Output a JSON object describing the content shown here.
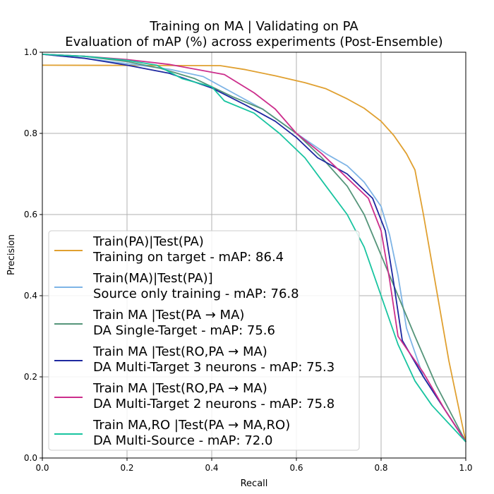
{
  "chart_data": {
    "type": "line",
    "title": "Training on MA | Validating on PA",
    "subtitle": "Evaluation of mAP (%) across experiments (Post-Ensemble)",
    "xlabel": "Recall",
    "ylabel": "Precision",
    "xlim": [
      0,
      1
    ],
    "ylim": [
      0,
      1
    ],
    "xticks": [
      "0.0",
      "0.2",
      "0.4",
      "0.6",
      "0.8",
      "1.0"
    ],
    "yticks": [
      "0.0",
      "0.2",
      "0.4",
      "0.6",
      "0.8",
      "1.0"
    ],
    "grid": true,
    "legend_position": "lower-left",
    "series": [
      {
        "name": "Train(PA)|Test(PA)",
        "description": "Training on target - mAP: 86.4",
        "color": "#e0a030",
        "points": [
          [
            0,
            0.968
          ],
          [
            0.42,
            0.967
          ],
          [
            0.48,
            0.957
          ],
          [
            0.55,
            0.942
          ],
          [
            0.62,
            0.925
          ],
          [
            0.67,
            0.91
          ],
          [
            0.72,
            0.885
          ],
          [
            0.76,
            0.862
          ],
          [
            0.8,
            0.83
          ],
          [
            0.83,
            0.795
          ],
          [
            0.86,
            0.75
          ],
          [
            0.88,
            0.71
          ],
          [
            0.9,
            0.6
          ],
          [
            0.93,
            0.42
          ],
          [
            0.96,
            0.24
          ],
          [
            1.0,
            0.04
          ]
        ]
      },
      {
        "name": "Train(MA)|Test(PA)]",
        "description": "Source only training - mAP: 76.8",
        "color": "#7eb4e6",
        "points": [
          [
            0,
            0.995
          ],
          [
            0.1,
            0.985
          ],
          [
            0.2,
            0.972
          ],
          [
            0.3,
            0.958
          ],
          [
            0.38,
            0.94
          ],
          [
            0.45,
            0.9
          ],
          [
            0.52,
            0.86
          ],
          [
            0.6,
            0.8
          ],
          [
            0.67,
            0.75
          ],
          [
            0.72,
            0.72
          ],
          [
            0.76,
            0.68
          ],
          [
            0.8,
            0.62
          ],
          [
            0.82,
            0.55
          ],
          [
            0.84,
            0.45
          ],
          [
            0.86,
            0.32
          ],
          [
            0.9,
            0.2
          ],
          [
            0.95,
            0.12
          ],
          [
            1.0,
            0.04
          ]
        ]
      },
      {
        "name": "Train MA |Test(PA → MA)",
        "description": "DA Single-Target - mAP: 75.6",
        "color": "#55957a",
        "points": [
          [
            0,
            0.995
          ],
          [
            0.1,
            0.99
          ],
          [
            0.2,
            0.977
          ],
          [
            0.28,
            0.96
          ],
          [
            0.36,
            0.935
          ],
          [
            0.45,
            0.89
          ],
          [
            0.52,
            0.86
          ],
          [
            0.6,
            0.8
          ],
          [
            0.66,
            0.74
          ],
          [
            0.72,
            0.67
          ],
          [
            0.76,
            0.6
          ],
          [
            0.8,
            0.5
          ],
          [
            0.84,
            0.4
          ],
          [
            0.88,
            0.3
          ],
          [
            0.93,
            0.18
          ],
          [
            1.0,
            0.04
          ]
        ]
      },
      {
        "name": "Train MA |Test(RO,PA → MA)",
        "description": "DA Multi-Target 3 neurons - mAP: 75.3",
        "color": "#1e28a0",
        "points": [
          [
            0,
            0.995
          ],
          [
            0.1,
            0.985
          ],
          [
            0.2,
            0.968
          ],
          [
            0.3,
            0.948
          ],
          [
            0.4,
            0.912
          ],
          [
            0.48,
            0.87
          ],
          [
            0.55,
            0.83
          ],
          [
            0.6,
            0.79
          ],
          [
            0.65,
            0.74
          ],
          [
            0.72,
            0.7
          ],
          [
            0.78,
            0.64
          ],
          [
            0.81,
            0.56
          ],
          [
            0.83,
            0.43
          ],
          [
            0.85,
            0.29
          ],
          [
            0.9,
            0.2
          ],
          [
            0.95,
            0.12
          ],
          [
            1.0,
            0.04
          ]
        ]
      },
      {
        "name": "Train MA |Test(RO,PA → MA)",
        "description": "DA Multi-Target 2 neurons - mAP: 75.8",
        "color": "#cc2e8c",
        "points": [
          [
            0,
            0.995
          ],
          [
            0.1,
            0.99
          ],
          [
            0.2,
            0.982
          ],
          [
            0.3,
            0.97
          ],
          [
            0.43,
            0.945
          ],
          [
            0.5,
            0.9
          ],
          [
            0.55,
            0.86
          ],
          [
            0.6,
            0.8
          ],
          [
            0.66,
            0.75
          ],
          [
            0.72,
            0.69
          ],
          [
            0.77,
            0.64
          ],
          [
            0.8,
            0.56
          ],
          [
            0.82,
            0.44
          ],
          [
            0.84,
            0.3
          ],
          [
            0.9,
            0.21
          ],
          [
            0.95,
            0.12
          ],
          [
            1.0,
            0.04
          ]
        ]
      },
      {
        "name": "Train MA,RO |Test(PA → MA,RO)",
        "description": "DA Multi-Source - mAP: 72.0",
        "color": "#18c4a0",
        "points": [
          [
            0,
            0.995
          ],
          [
            0.1,
            0.99
          ],
          [
            0.2,
            0.98
          ],
          [
            0.27,
            0.968
          ],
          [
            0.33,
            0.935
          ],
          [
            0.4,
            0.915
          ],
          [
            0.43,
            0.88
          ],
          [
            0.5,
            0.85
          ],
          [
            0.56,
            0.8
          ],
          [
            0.62,
            0.74
          ],
          [
            0.67,
            0.67
          ],
          [
            0.72,
            0.6
          ],
          [
            0.76,
            0.52
          ],
          [
            0.8,
            0.4
          ],
          [
            0.84,
            0.28
          ],
          [
            0.88,
            0.19
          ],
          [
            0.92,
            0.13
          ],
          [
            1.0,
            0.04
          ]
        ]
      }
    ]
  }
}
